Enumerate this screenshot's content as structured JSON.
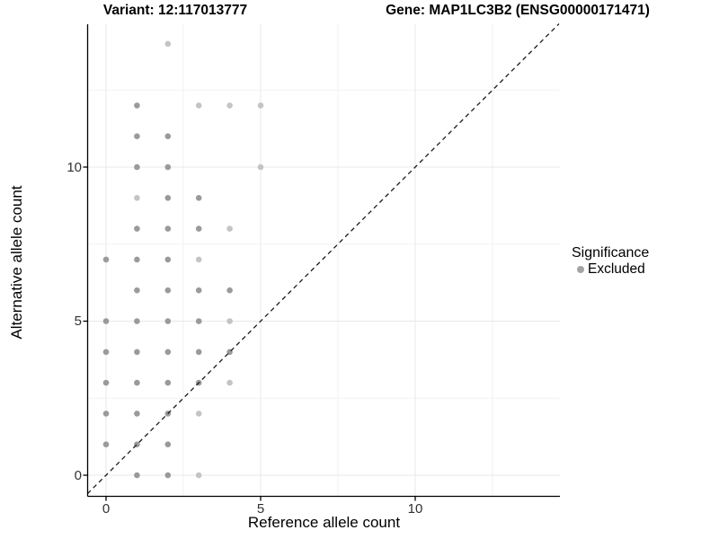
{
  "titles": {
    "left": "Variant: 12:117013777",
    "right": "Gene: MAP1LC3B2 (ENSG00000171471)"
  },
  "axes": {
    "x_label": "Reference allele count",
    "y_label": "Alternative allele count",
    "x_ticks": [
      "0",
      "5",
      "10"
    ],
    "y_ticks": [
      "0",
      "5",
      "10"
    ]
  },
  "legend": {
    "title": "Significance",
    "items": [
      {
        "label": "Excluded",
        "marker": "circle",
        "color": "#a3a3a3"
      }
    ]
  },
  "colors": {
    "point_mid": "#9a9a9a",
    "point_light": "#c4c4c4",
    "grid_major": "#e8e8e8",
    "grid_minor": "#f2f2f2",
    "axis_line": "#000000",
    "identity_line": "#1a1a1a",
    "background": "#ffffff"
  },
  "chart_data": {
    "type": "scatter",
    "title": "Variant: 12:117013777 / Gene: MAP1LC3B2 (ENSG00000171471)",
    "xlabel": "Reference allele count",
    "ylabel": "Alternative allele count",
    "xlim": [
      -0.6,
      14.65
    ],
    "ylim": [
      -0.6,
      14.65
    ],
    "x_major": [
      0,
      5,
      10
    ],
    "x_minor": [
      2.5,
      7.5,
      12.5
    ],
    "y_major": [
      0,
      5,
      10
    ],
    "y_minor": [
      2.5,
      7.5,
      12.5
    ],
    "grid": "on",
    "legend_position": "right",
    "identity_line": {
      "equation": "y = x",
      "style": "dashed"
    },
    "series": [
      {
        "name": "Excluded",
        "marker": "circle",
        "points": [
          [
            1,
            0,
            "m"
          ],
          [
            2,
            0,
            "m"
          ],
          [
            3,
            0,
            "l"
          ],
          [
            0,
            1,
            "m"
          ],
          [
            1,
            1,
            "m"
          ],
          [
            2,
            1,
            "m"
          ],
          [
            0,
            2,
            "m"
          ],
          [
            1,
            2,
            "m"
          ],
          [
            2,
            2,
            "m"
          ],
          [
            3,
            2,
            "l"
          ],
          [
            0,
            3,
            "m"
          ],
          [
            1,
            3,
            "m"
          ],
          [
            2,
            3,
            "m"
          ],
          [
            3,
            3,
            "m"
          ],
          [
            4,
            3,
            "l"
          ],
          [
            0,
            4,
            "m"
          ],
          [
            1,
            4,
            "m"
          ],
          [
            2,
            4,
            "m"
          ],
          [
            3,
            4,
            "m"
          ],
          [
            4,
            4,
            "m"
          ],
          [
            0,
            5,
            "m"
          ],
          [
            1,
            5,
            "m"
          ],
          [
            2,
            5,
            "m"
          ],
          [
            3,
            5,
            "m"
          ],
          [
            4,
            5,
            "l"
          ],
          [
            1,
            6,
            "m"
          ],
          [
            2,
            6,
            "m"
          ],
          [
            3,
            6,
            "m"
          ],
          [
            4,
            6,
            "m"
          ],
          [
            0,
            7,
            "m"
          ],
          [
            1,
            7,
            "m"
          ],
          [
            2,
            7,
            "m"
          ],
          [
            3,
            7,
            "l"
          ],
          [
            1,
            8,
            "m"
          ],
          [
            2,
            8,
            "m"
          ],
          [
            3,
            8,
            "m"
          ],
          [
            4,
            8,
            "l"
          ],
          [
            1,
            9,
            "l"
          ],
          [
            2,
            9,
            "m"
          ],
          [
            3,
            9,
            "m"
          ],
          [
            1,
            10,
            "m"
          ],
          [
            2,
            10,
            "m"
          ],
          [
            5,
            10,
            "l"
          ],
          [
            1,
            11,
            "m"
          ],
          [
            2,
            11,
            "m"
          ],
          [
            1,
            12,
            "m"
          ],
          [
            3,
            12,
            "l"
          ],
          [
            4,
            12,
            "l"
          ],
          [
            5,
            12,
            "l"
          ],
          [
            2,
            14,
            "l"
          ]
        ]
      }
    ]
  }
}
